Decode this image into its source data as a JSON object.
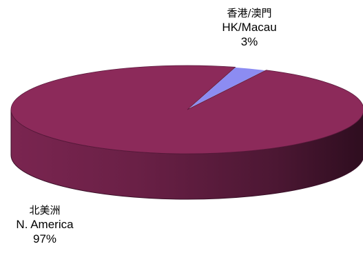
{
  "chart_data": {
    "type": "pie",
    "title": "",
    "slices": [
      {
        "label_zh": "香港/澳門",
        "label_en": "HK/Macau",
        "value": 3,
        "value_label": "3%",
        "color": "#8c8cf2"
      },
      {
        "label_zh": "北美洲",
        "label_en": "N. America",
        "value": 97,
        "value_label": "97%",
        "color": "#8c2a5a"
      }
    ],
    "legend": "none",
    "style": "3d"
  }
}
